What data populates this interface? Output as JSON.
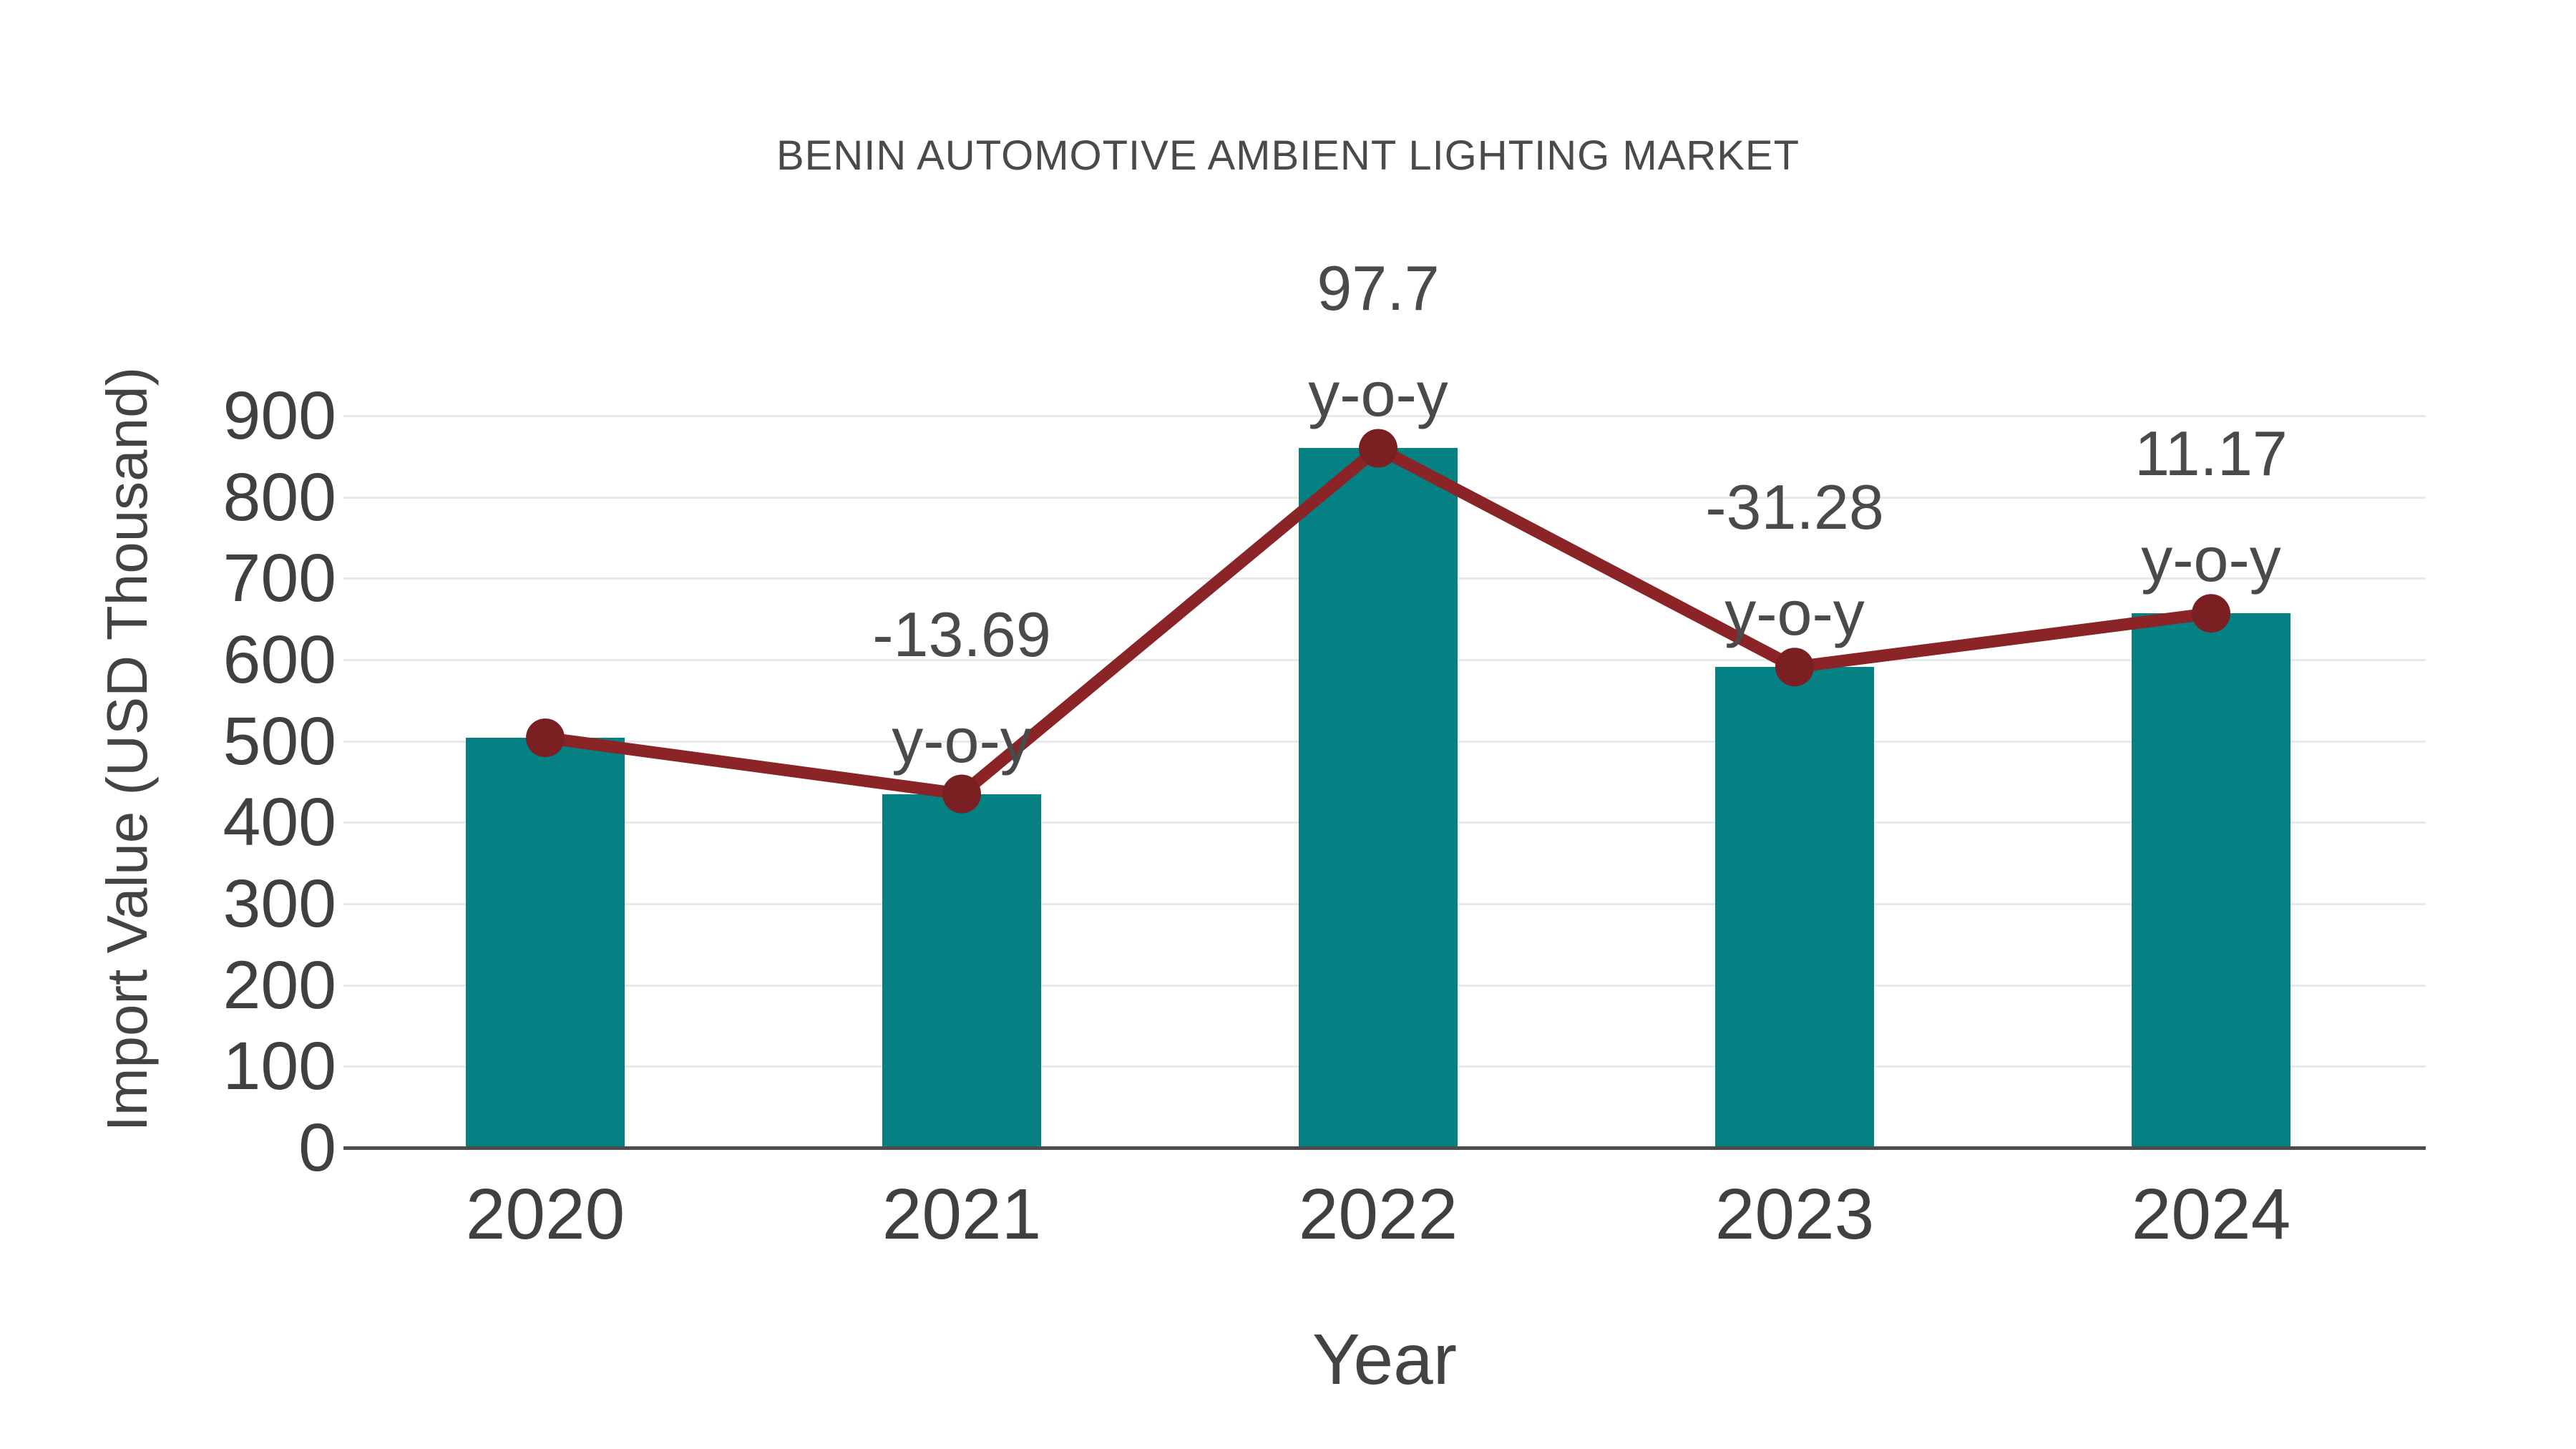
{
  "title": "BENIN AUTOMOTIVE AMBIENT LIGHTING MARKET",
  "chart_data": {
    "type": "bar",
    "title": "BENIN AUTOMOTIVE AMBIENT LIGHTING MARKET",
    "categories": [
      "2020",
      "2021",
      "2022",
      "2023",
      "2024"
    ],
    "series": [
      {
        "name": "Import Value",
        "type": "bar",
        "values": [
          504,
          435,
          860,
          591,
          657
        ],
        "color": "#058083"
      },
      {
        "name": "y-o-y trend",
        "type": "line",
        "values": [
          504,
          435,
          860,
          591,
          657
        ],
        "color": "#8a2426",
        "marker_color": "#7a1f22",
        "annotations": [
          {
            "category": "2020",
            "line1": "",
            "line2": ""
          },
          {
            "category": "2021",
            "line1": "-13.69",
            "line2": "y-o-y"
          },
          {
            "category": "2022",
            "line1": "97.7",
            "line2": "y-o-y"
          },
          {
            "category": "2023",
            "line1": "-31.28",
            "line2": "y-o-y"
          },
          {
            "category": "2024",
            "line1": "11.17",
            "line2": "y-o-y"
          }
        ]
      }
    ],
    "xlabel": "Year",
    "ylabel": "Import Value (USD Thousand)",
    "ylim": [
      0,
      900
    ],
    "yticks": [
      0,
      100,
      200,
      300,
      400,
      500,
      600,
      700,
      800,
      900
    ],
    "grid": "horizontal",
    "legend": "none"
  },
  "colors": {
    "background": "#ffffff",
    "bar": "#058083",
    "line": "#8a2426",
    "marker": "#7a1f22",
    "gridline": "#e9e9e9",
    "axis": "#4d4d4d",
    "text": "#434343"
  }
}
